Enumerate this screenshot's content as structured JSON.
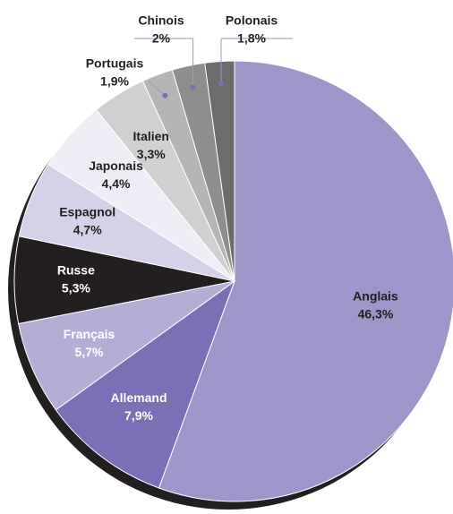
{
  "chart_data": {
    "type": "pie",
    "categories": [
      "Anglais",
      "Allemand",
      "Français",
      "Russe",
      "Espagnol",
      "Japonais",
      "Italien",
      "Portugais",
      "Chinois",
      "Polonais"
    ],
    "values": [
      46.3,
      7.9,
      5.7,
      5.3,
      4.7,
      4.4,
      3.3,
      1.9,
      2,
      1.8
    ],
    "value_labels": [
      "46,3%",
      "7,9%",
      "5,7%",
      "5,3%",
      "4,7%",
      "4,4%",
      "3,3%",
      "1,9%",
      "2%",
      "1,8%"
    ],
    "colors": [
      "#9d96c9",
      "#7b6fb6",
      "#b4aed7",
      "#231f20",
      "#d5d1e9",
      "#ededf5",
      "#d0d0d0",
      "#b5b5b5",
      "#8e8e8e",
      "#6c6c6c"
    ]
  }
}
